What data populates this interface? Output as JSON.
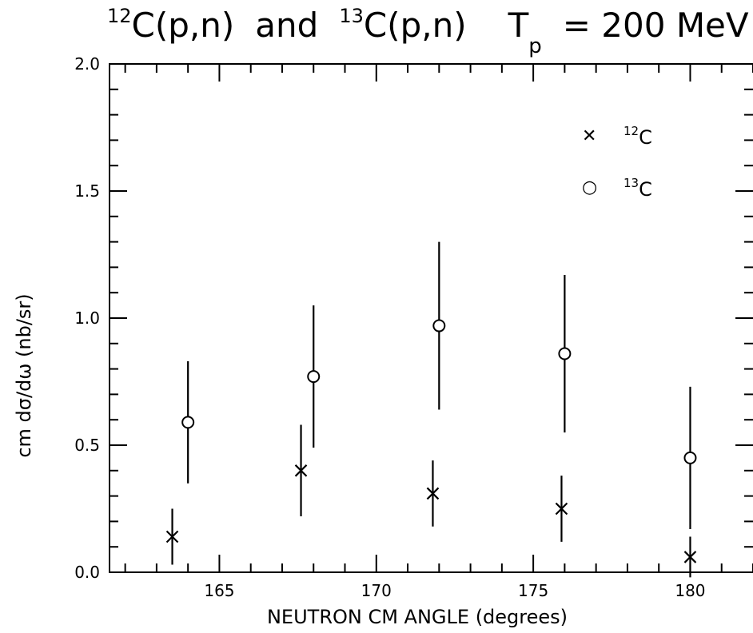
{
  "chart_data": {
    "type": "scatter",
    "title": {
      "iso1_mass": "12",
      "iso1_rest": "C(p,n)",
      "connector": "and",
      "iso2_mass": "13",
      "iso2_rest": "C(p,n)",
      "energy_symbol": "T",
      "energy_sub": "p",
      "energy_value": "= 200 MeV"
    },
    "xlabel": "NEUTRON CM ANGLE (degrees)",
    "ylabel": "cm dσ/dω (nb/sr)",
    "xlim": [
      161.5,
      182
    ],
    "ylim": [
      0.0,
      2.0
    ],
    "xticks": [
      165,
      170,
      175,
      180
    ],
    "yticks": [
      0.0,
      0.5,
      1.0,
      1.5,
      2.0
    ],
    "xtick_labels": [
      "165",
      "170",
      "175",
      "180"
    ],
    "ytick_labels": [
      "0.0",
      "0.5",
      "1.0",
      "1.5",
      "2.0"
    ],
    "legend_position": "top-right",
    "series": [
      {
        "mass": "12",
        "element": "C",
        "marker": "x",
        "points": [
          {
            "x": 163.5,
            "y": 0.14,
            "err": 0.11
          },
          {
            "x": 167.6,
            "y": 0.4,
            "err": 0.18
          },
          {
            "x": 171.8,
            "y": 0.31,
            "err": 0.13
          },
          {
            "x": 175.9,
            "y": 0.25,
            "err": 0.13
          },
          {
            "x": 180.0,
            "y": 0.06,
            "err": 0.08
          }
        ]
      },
      {
        "mass": "13",
        "element": "C",
        "marker": "o",
        "points": [
          {
            "x": 164.0,
            "y": 0.59,
            "err": 0.24
          },
          {
            "x": 168.0,
            "y": 0.77,
            "err": 0.28
          },
          {
            "x": 172.0,
            "y": 0.97,
            "err": 0.33
          },
          {
            "x": 176.0,
            "y": 0.86,
            "err": 0.31
          },
          {
            "x": 180.0,
            "y": 0.45,
            "err": 0.28
          }
        ]
      }
    ]
  }
}
